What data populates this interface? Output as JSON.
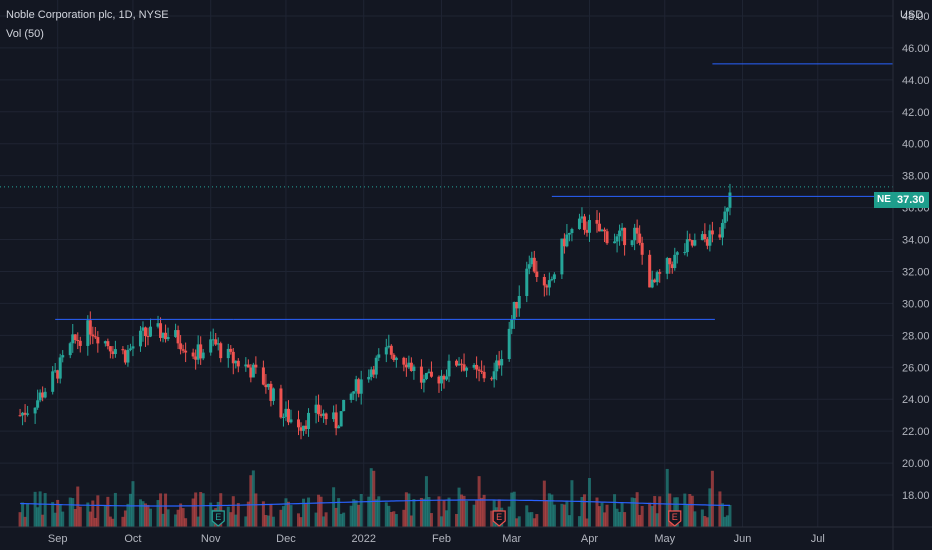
{
  "header": {
    "title": "Noble Corporation plc, 1D, NYSE",
    "volume_label": "Vol (50)",
    "currency": "USD"
  },
  "last_price": {
    "symbol": "NE",
    "value": "37.30"
  },
  "colors": {
    "bg": "#131722",
    "up": "#26a69a",
    "down": "#ef5350",
    "line": "#2962ff",
    "grid": "#1f2433"
  },
  "chart_data": {
    "type": "candlestick",
    "title": "",
    "y_axis": {
      "min": 16,
      "max": 49,
      "ticks": [
        18,
        20,
        22,
        24,
        26,
        28,
        30,
        32,
        34,
        36,
        38,
        40,
        42,
        44,
        46,
        48
      ]
    },
    "y_tick_labels": [
      "18.00",
      "20.00",
      "22.00",
      "24.00",
      "26.00",
      "28.00",
      "30.00",
      "32.00",
      "34.00",
      "36.00",
      "38.00",
      "40.00",
      "42.00",
      "44.00",
      "46.00",
      "48.00"
    ],
    "x_axis": {
      "labels": [
        {
          "label": "Sep",
          "date": "2021-09-01"
        },
        {
          "label": "Oct",
          "date": "2021-10-01"
        },
        {
          "label": "Nov",
          "date": "2021-11-01"
        },
        {
          "label": "Dec",
          "date": "2021-12-01"
        },
        {
          "label": "2022",
          "date": "2022-01-01"
        },
        {
          "label": "Feb",
          "date": "2022-02-01"
        },
        {
          "label": "Mar",
          "date": "2022-03-01"
        },
        {
          "label": "Apr",
          "date": "2022-04-01"
        },
        {
          "label": "May",
          "date": "2022-05-01"
        },
        {
          "label": "Jun",
          "date": "2022-06-01"
        },
        {
          "label": "Jul",
          "date": "2022-07-01"
        }
      ]
    },
    "price_series": [
      [
        "2021-08-17",
        23.0
      ],
      [
        "2021-08-24",
        24.0
      ],
      [
        "2021-08-31",
        25.5
      ],
      [
        "2021-09-07",
        27.5
      ],
      [
        "2021-09-14",
        28.5
      ],
      [
        "2021-09-21",
        27.5
      ],
      [
        "2021-09-28",
        26.8
      ],
      [
        "2021-10-05",
        28.0
      ],
      [
        "2021-10-12",
        28.2
      ],
      [
        "2021-10-19",
        27.8
      ],
      [
        "2021-10-26",
        26.8
      ],
      [
        "2021-11-02",
        27.5
      ],
      [
        "2021-11-09",
        26.5
      ],
      [
        "2021-11-16",
        26.0
      ],
      [
        "2021-11-23",
        25.0
      ],
      [
        "2021-11-30",
        23.0
      ],
      [
        "2021-12-07",
        22.5
      ],
      [
        "2021-12-14",
        23.2
      ],
      [
        "2021-12-21",
        22.5
      ],
      [
        "2021-12-28",
        24.5
      ],
      [
        "2022-01-04",
        26.0
      ],
      [
        "2022-01-11",
        27.0
      ],
      [
        "2022-01-18",
        26.5
      ],
      [
        "2022-01-25",
        25.0
      ],
      [
        "2022-02-01",
        25.5
      ],
      [
        "2022-02-08",
        26.5
      ],
      [
        "2022-02-15",
        25.5
      ],
      [
        "2022-02-22",
        25.5
      ],
      [
        "2022-03-01",
        29.0
      ],
      [
        "2022-03-08",
        33.0
      ],
      [
        "2022-03-15",
        30.5
      ],
      [
        "2022-03-22",
        34.0
      ],
      [
        "2022-03-29",
        35.0
      ],
      [
        "2022-04-05",
        34.5
      ],
      [
        "2022-04-12",
        34.0
      ],
      [
        "2022-04-19",
        34.5
      ],
      [
        "2022-04-26",
        31.0
      ],
      [
        "2022-05-03",
        32.5
      ],
      [
        "2022-05-10",
        33.5
      ],
      [
        "2022-05-17",
        34.0
      ],
      [
        "2022-05-24",
        34.5
      ],
      [
        "2022-05-27",
        37.3
      ]
    ],
    "horizontal_lines": [
      {
        "value": 45.0,
        "from": "2022-05-20",
        "to": "2022-07-31"
      },
      {
        "value": 36.7,
        "from": "2022-03-17",
        "to": "2022-07-31"
      },
      {
        "value": 29.0,
        "from": "2021-08-31",
        "to": "2021-11-10"
      },
      {
        "value": 29.0,
        "from": "2021-11-10",
        "to": "2022-05-21"
      }
    ],
    "earnings_markers": [
      "2021-11-04",
      "2022-02-24",
      "2022-05-05"
    ],
    "volume": {
      "ma_period": 50
    }
  }
}
